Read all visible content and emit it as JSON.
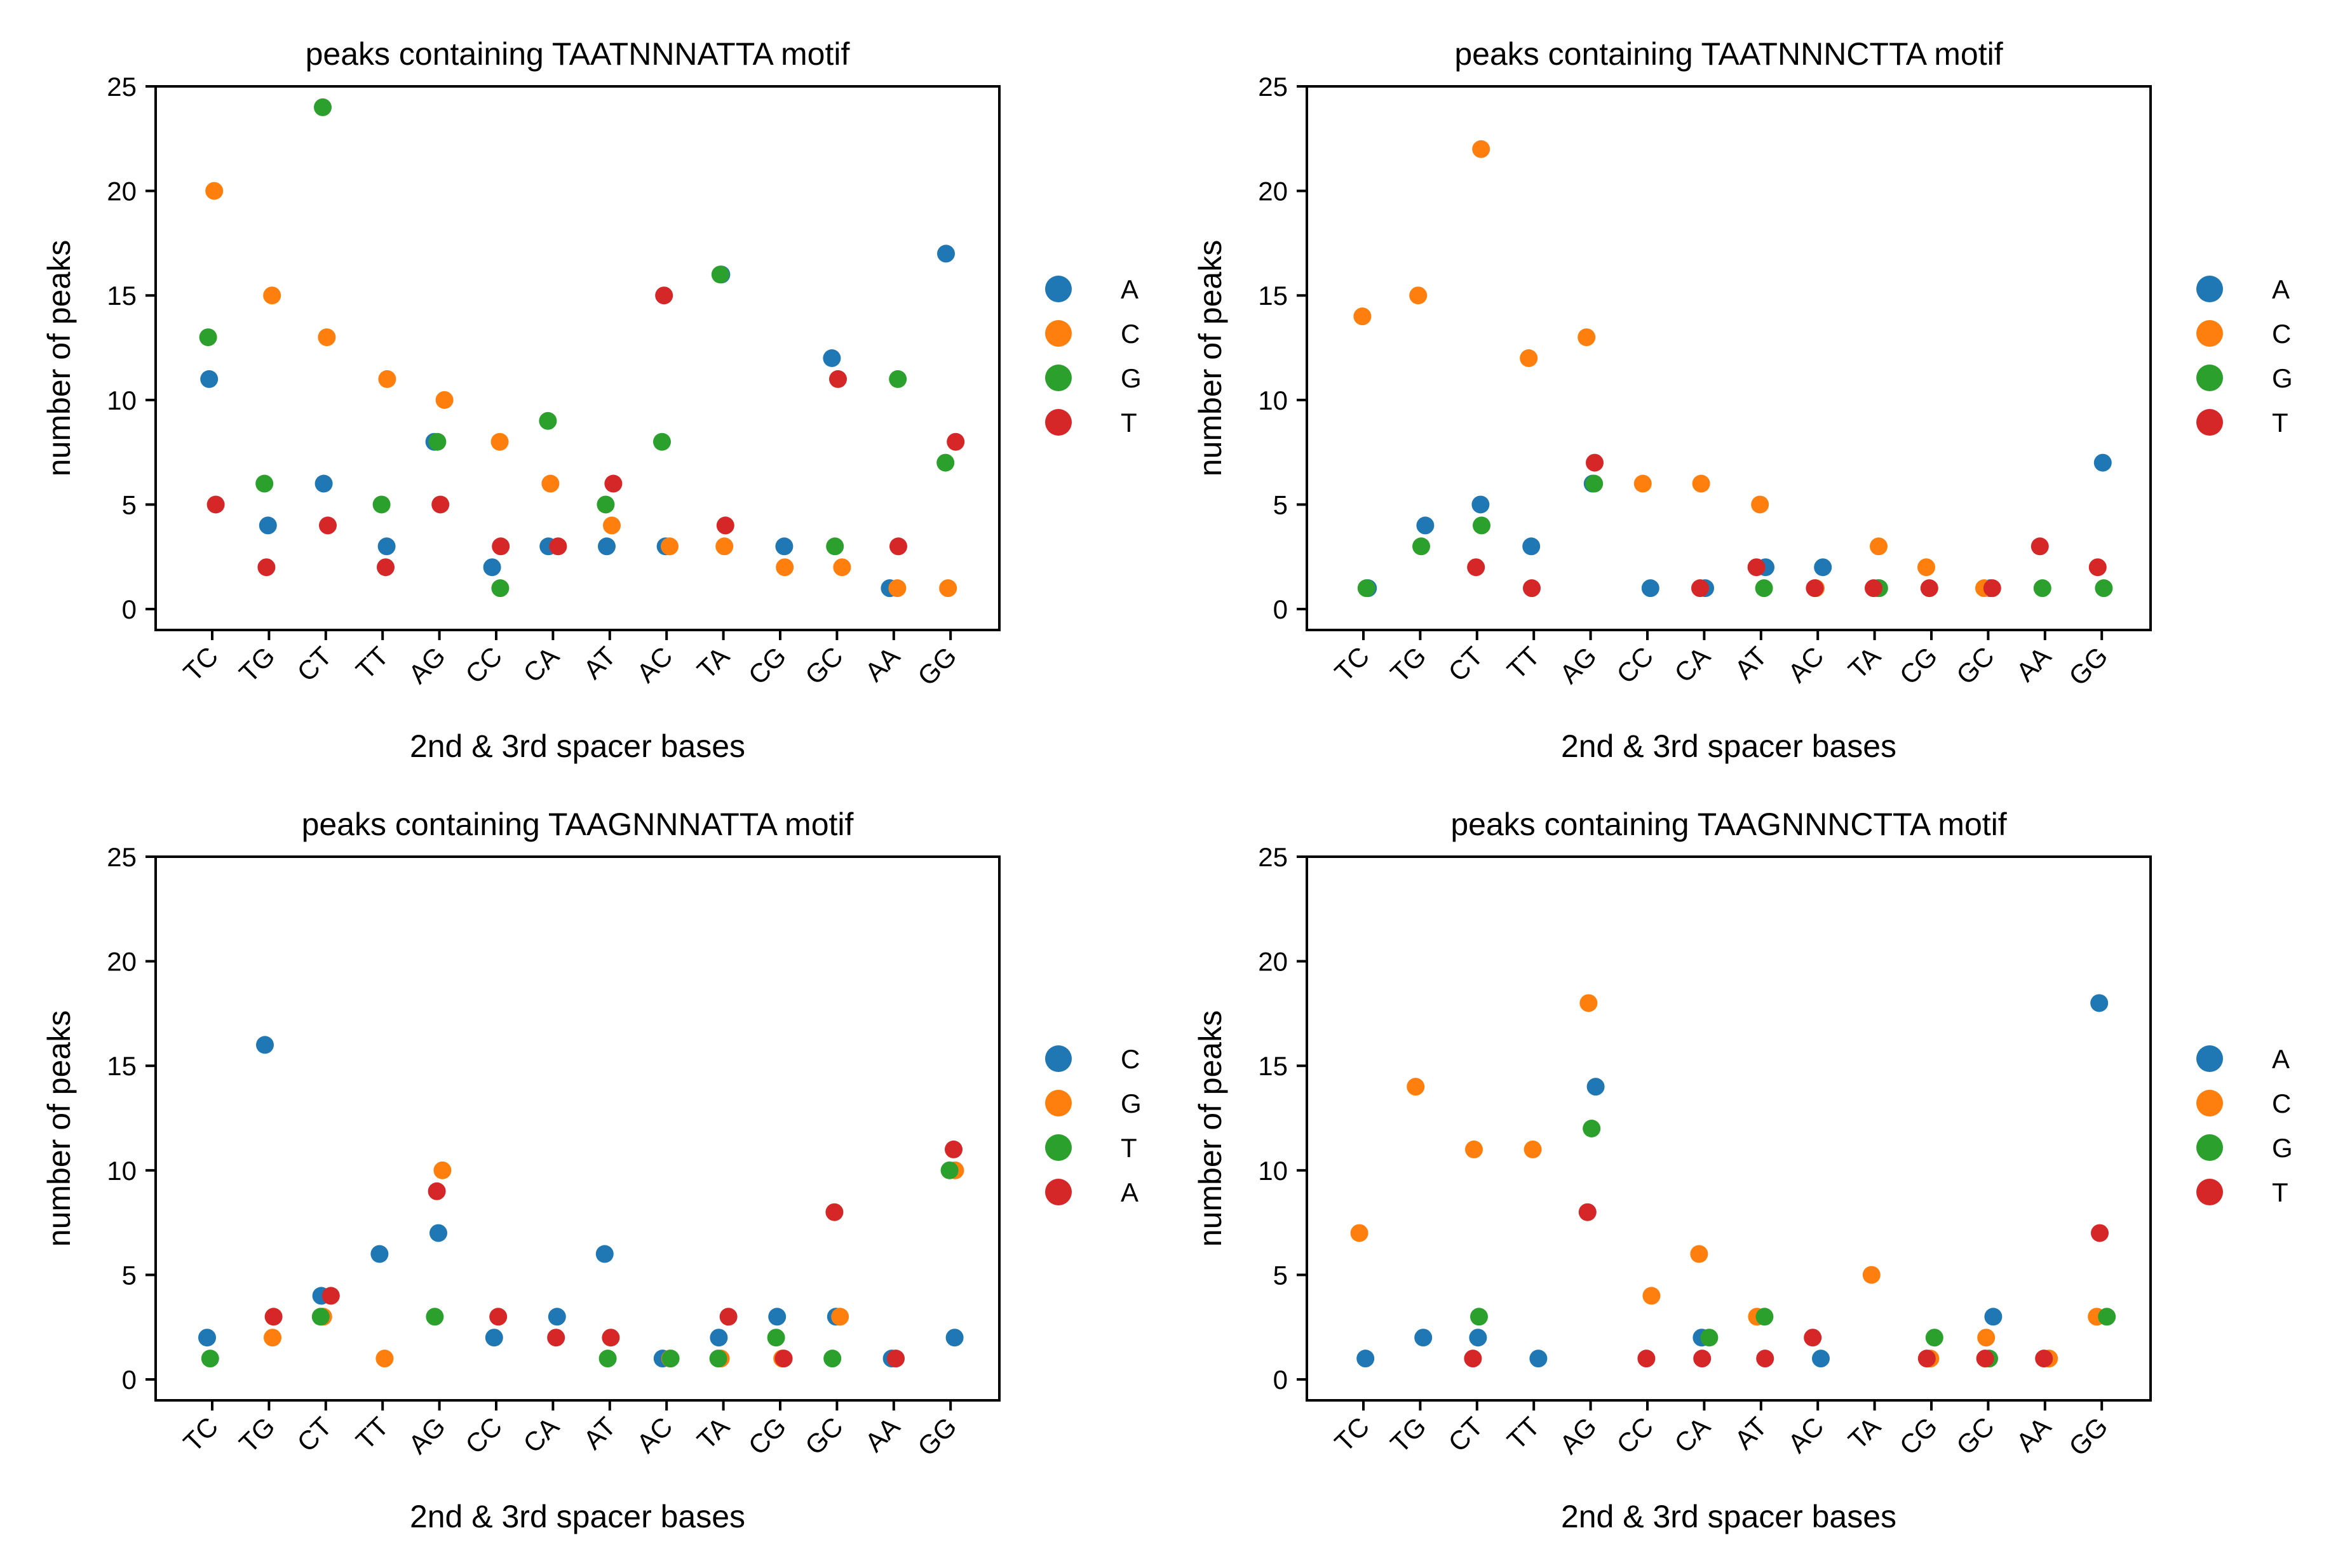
{
  "figure": {
    "colors": {
      "blue": "#1f77b4",
      "orange": "#ff7f0e",
      "green": "#2ca02c",
      "red": "#d62728"
    }
  },
  "chart_data": [
    {
      "type": "scatter",
      "title": "peaks containing TAATNNNATTA motif",
      "xlabel": "2nd & 3rd spacer bases",
      "ylabel": "number of peaks",
      "ylim": [
        -1,
        25
      ],
      "yticks": [
        0,
        5,
        10,
        15,
        20,
        25
      ],
      "categories": [
        "TC",
        "TG",
        "CT",
        "TT",
        "AG",
        "CC",
        "CA",
        "AT",
        "AC",
        "TA",
        "CG",
        "GC",
        "AA",
        "GG"
      ],
      "legend_position": "right",
      "series": [
        {
          "name": "A",
          "color": "#1f77b4",
          "values": [
            11,
            4,
            6,
            3,
            8,
            2,
            3,
            3,
            3,
            16,
            3,
            12,
            1,
            17
          ]
        },
        {
          "name": "C",
          "color": "#ff7f0e",
          "values": [
            20,
            15,
            13,
            11,
            10,
            8,
            6,
            4,
            3,
            3,
            2,
            2,
            1,
            1
          ]
        },
        {
          "name": "G",
          "color": "#2ca02c",
          "values": [
            13,
            6,
            24,
            5,
            8,
            1,
            9,
            5,
            8,
            16,
            null,
            3,
            11,
            7
          ]
        },
        {
          "name": "T",
          "color": "#d62728",
          "values": [
            5,
            2,
            4,
            2,
            5,
            3,
            3,
            6,
            15,
            4,
            null,
            11,
            3,
            8
          ]
        }
      ]
    },
    {
      "type": "scatter",
      "title": "peaks containing TAATNNNCTTA motif",
      "xlabel": "2nd & 3rd spacer bases",
      "ylabel": "number of peaks",
      "ylim": [
        -1,
        25
      ],
      "yticks": [
        0,
        5,
        10,
        15,
        20,
        25
      ],
      "categories": [
        "TC",
        "TG",
        "CT",
        "TT",
        "AG",
        "CC",
        "CA",
        "AT",
        "AC",
        "TA",
        "CG",
        "GC",
        "AA",
        "GG"
      ],
      "legend_position": "right",
      "series": [
        {
          "name": "A",
          "color": "#1f77b4",
          "values": [
            1,
            4,
            5,
            3,
            6,
            1,
            1,
            2,
            2,
            1,
            null,
            1,
            null,
            7
          ]
        },
        {
          "name": "C",
          "color": "#ff7f0e",
          "values": [
            14,
            15,
            22,
            12,
            13,
            6,
            6,
            5,
            1,
            3,
            2,
            1,
            null,
            null
          ]
        },
        {
          "name": "G",
          "color": "#2ca02c",
          "values": [
            1,
            3,
            4,
            null,
            6,
            null,
            null,
            1,
            null,
            1,
            null,
            null,
            1,
            1
          ]
        },
        {
          "name": "T",
          "color": "#d62728",
          "values": [
            null,
            null,
            2,
            1,
            7,
            null,
            1,
            2,
            1,
            1,
            1,
            1,
            3,
            2
          ]
        }
      ]
    },
    {
      "type": "scatter",
      "title": "peaks containing TAAGNNNATTA motif",
      "xlabel": "2nd & 3rd spacer bases",
      "ylabel": "number of peaks",
      "ylim": [
        -1,
        25
      ],
      "yticks": [
        0,
        5,
        10,
        15,
        20,
        25
      ],
      "categories": [
        "TC",
        "TG",
        "CT",
        "TT",
        "AG",
        "CC",
        "CA",
        "AT",
        "AC",
        "TA",
        "CG",
        "GC",
        "AA",
        "GG"
      ],
      "legend_position": "right",
      "series": [
        {
          "name": "C",
          "color": "#1f77b4",
          "values": [
            2,
            16,
            4,
            6,
            7,
            2,
            3,
            6,
            1,
            2,
            3,
            3,
            1,
            2
          ]
        },
        {
          "name": "G",
          "color": "#ff7f0e",
          "values": [
            null,
            2,
            3,
            1,
            10,
            null,
            null,
            null,
            1,
            1,
            1,
            3,
            null,
            10
          ]
        },
        {
          "name": "T",
          "color": "#2ca02c",
          "values": [
            1,
            null,
            3,
            null,
            3,
            null,
            null,
            1,
            1,
            1,
            2,
            1,
            null,
            10
          ]
        },
        {
          "name": "A",
          "color": "#d62728",
          "values": [
            null,
            3,
            4,
            null,
            9,
            3,
            2,
            2,
            null,
            3,
            1,
            8,
            1,
            11
          ]
        }
      ]
    },
    {
      "type": "scatter",
      "title": "peaks containing TAAGNNNCTTA motif",
      "xlabel": "2nd & 3rd spacer bases",
      "ylabel": "number of peaks",
      "ylim": [
        -1,
        25
      ],
      "yticks": [
        0,
        5,
        10,
        15,
        20,
        25
      ],
      "categories": [
        "TC",
        "TG",
        "CT",
        "TT",
        "AG",
        "CC",
        "CA",
        "AT",
        "AC",
        "TA",
        "CG",
        "GC",
        "AA",
        "GG"
      ],
      "legend_position": "right",
      "series": [
        {
          "name": "A",
          "color": "#1f77b4",
          "values": [
            1,
            2,
            2,
            1,
            14,
            null,
            2,
            null,
            1,
            null,
            null,
            3,
            null,
            18
          ]
        },
        {
          "name": "C",
          "color": "#ff7f0e",
          "values": [
            7,
            14,
            11,
            11,
            18,
            4,
            6,
            3,
            null,
            5,
            1,
            2,
            1,
            3
          ]
        },
        {
          "name": "G",
          "color": "#2ca02c",
          "values": [
            null,
            null,
            3,
            null,
            12,
            null,
            2,
            3,
            null,
            null,
            2,
            1,
            null,
            3
          ]
        },
        {
          "name": "T",
          "color": "#d62728",
          "values": [
            null,
            null,
            1,
            null,
            8,
            1,
            1,
            1,
            2,
            null,
            1,
            1,
            1,
            7
          ]
        }
      ]
    }
  ]
}
